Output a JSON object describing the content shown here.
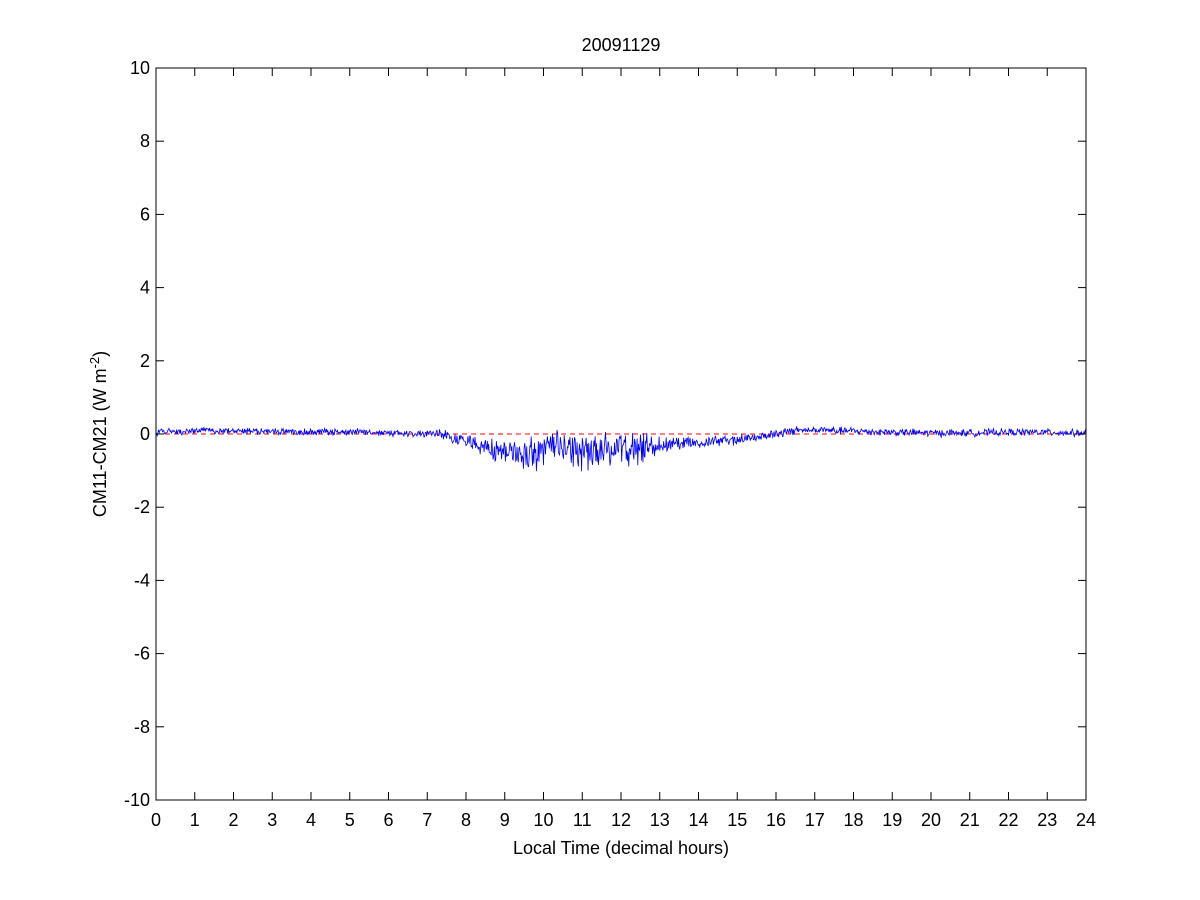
{
  "chart_data": {
    "type": "line",
    "title": "20091129",
    "xlabel": "Local Time (decimal hours)",
    "ylabel_main": "CM11-CM21 (W m",
    "ylabel_sup": "-2",
    "ylabel_close": ")",
    "xlim": [
      0,
      24
    ],
    "ylim": [
      -10,
      10
    ],
    "xticks": [
      0,
      1,
      2,
      3,
      4,
      5,
      6,
      7,
      8,
      9,
      10,
      11,
      12,
      13,
      14,
      15,
      16,
      17,
      18,
      19,
      20,
      21,
      22,
      23,
      24
    ],
    "yticks": [
      -10,
      -8,
      -6,
      -4,
      -2,
      0,
      2,
      4,
      6,
      8,
      10
    ],
    "grid": false,
    "reference_line": {
      "y": 0,
      "style": "dashed",
      "color": "#ff0000"
    },
    "series_color": "#0000ff",
    "series_baseline": [
      [
        0,
        0.05
      ],
      [
        1,
        0.08
      ],
      [
        2,
        0.1
      ],
      [
        3,
        0.07
      ],
      [
        4,
        0.06
      ],
      [
        5,
        0.06
      ],
      [
        6,
        0.03
      ],
      [
        7,
        0.02
      ],
      [
        7.5,
        -0.05
      ],
      [
        8,
        -0.2
      ],
      [
        8.5,
        -0.4
      ],
      [
        9,
        -0.5
      ],
      [
        9.5,
        -0.55
      ],
      [
        10,
        -0.45
      ],
      [
        10.5,
        -0.4
      ],
      [
        11,
        -0.45
      ],
      [
        11.5,
        -0.45
      ],
      [
        12,
        -0.45
      ],
      [
        12.5,
        -0.4
      ],
      [
        13,
        -0.3
      ],
      [
        13.5,
        -0.25
      ],
      [
        14,
        -0.22
      ],
      [
        14.5,
        -0.2
      ],
      [
        15,
        -0.15
      ],
      [
        15.5,
        -0.08
      ],
      [
        16,
        0.0
      ],
      [
        16.5,
        0.1
      ],
      [
        17,
        0.1
      ],
      [
        18,
        0.08
      ],
      [
        19,
        0.05
      ],
      [
        20,
        0.03
      ],
      [
        21,
        0.03
      ],
      [
        22,
        0.05
      ],
      [
        23,
        0.05
      ],
      [
        24,
        0.02
      ]
    ],
    "series_noise": [
      [
        0,
        0.08
      ],
      [
        7,
        0.08
      ],
      [
        8,
        0.18
      ],
      [
        9,
        0.28
      ],
      [
        9.5,
        0.38
      ],
      [
        10,
        0.4
      ],
      [
        11,
        0.45
      ],
      [
        12,
        0.4
      ],
      [
        12.5,
        0.35
      ],
      [
        13,
        0.2
      ],
      [
        14,
        0.14
      ],
      [
        15,
        0.12
      ],
      [
        16,
        0.1
      ],
      [
        17,
        0.09
      ],
      [
        24,
        0.08
      ]
    ]
  }
}
